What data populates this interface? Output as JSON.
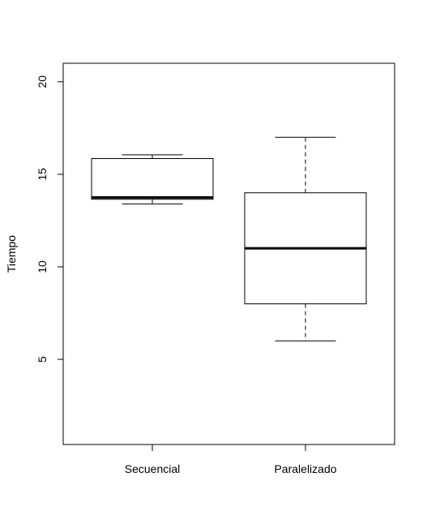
{
  "chart_data": {
    "type": "boxplot",
    "title": "",
    "xlabel": "",
    "ylabel": "Tiempo",
    "ylim": [
      0.4,
      21
    ],
    "yticks": [
      5,
      10,
      15,
      20
    ],
    "yticklabels": [
      "5",
      "10",
      "15",
      "20"
    ],
    "grid": false,
    "categories": [
      "Secuencial",
      "Paralelizado"
    ],
    "boxes": [
      {
        "category": "Secuencial",
        "min": 13.4,
        "q1": 13.65,
        "median": 13.75,
        "q3": 15.85,
        "max": 16.05
      },
      {
        "category": "Paralelizado",
        "min": 6,
        "q1": 8,
        "median": 11,
        "q3": 14,
        "max": 17
      }
    ]
  }
}
